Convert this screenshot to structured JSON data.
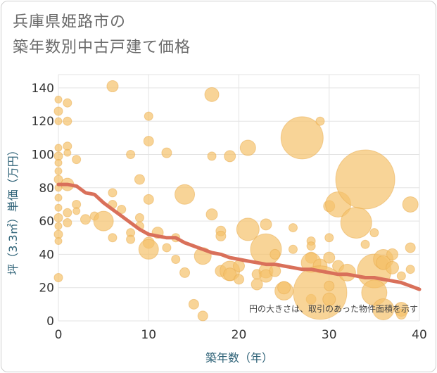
{
  "chart_data": {
    "type": "scatter",
    "title_lines": [
      "兵庫県姫路市の",
      "築年数別中古戸建て価格"
    ],
    "xlabel": "築年数（年）",
    "ylabel": "坪（3.3㎡）単価（万円）",
    "note": "円の大きさは、取引のあった物件面積を示す",
    "xlim": [
      0,
      40
    ],
    "ylim": [
      0,
      148
    ],
    "x_ticks": [
      0,
      10,
      20,
      30,
      40
    ],
    "y_ticks": [
      0,
      20,
      40,
      60,
      80,
      100,
      120,
      140
    ],
    "grid": true,
    "bubble_color": "#f5c26b",
    "bubble_edge_color": "#e8a94a",
    "trend_color": "#d9705a",
    "points": [
      {
        "x": 0,
        "y": 133,
        "size": 5
      },
      {
        "x": 0,
        "y": 126,
        "size": 6
      },
      {
        "x": 0,
        "y": 120,
        "size": 5
      },
      {
        "x": 0,
        "y": 104,
        "size": 5
      },
      {
        "x": 0,
        "y": 99,
        "size": 6
      },
      {
        "x": 0,
        "y": 95,
        "size": 5
      },
      {
        "x": 0,
        "y": 90,
        "size": 5
      },
      {
        "x": 0,
        "y": 85,
        "size": 6
      },
      {
        "x": 0,
        "y": 80,
        "size": 5
      },
      {
        "x": 0,
        "y": 74,
        "size": 5
      },
      {
        "x": 0,
        "y": 68,
        "size": 5
      },
      {
        "x": 0,
        "y": 62,
        "size": 6
      },
      {
        "x": 0,
        "y": 57,
        "size": 5
      },
      {
        "x": 0,
        "y": 52,
        "size": 6
      },
      {
        "x": 0,
        "y": 48,
        "size": 5
      },
      {
        "x": 0,
        "y": 26,
        "size": 6
      },
      {
        "x": 1,
        "y": 131,
        "size": 6
      },
      {
        "x": 1,
        "y": 120,
        "size": 6
      },
      {
        "x": 1,
        "y": 105,
        "size": 6
      },
      {
        "x": 1,
        "y": 101,
        "size": 5
      },
      {
        "x": 1,
        "y": 82,
        "size": 9
      },
      {
        "x": 1,
        "y": 65,
        "size": 6
      },
      {
        "x": 1,
        "y": 59,
        "size": 6
      },
      {
        "x": 2,
        "y": 97,
        "size": 6
      },
      {
        "x": 2,
        "y": 70,
        "size": 6
      },
      {
        "x": 2,
        "y": 66,
        "size": 5
      },
      {
        "x": 3,
        "y": 61,
        "size": 7
      },
      {
        "x": 4,
        "y": 63,
        "size": 6
      },
      {
        "x": 5,
        "y": 60,
        "size": 14
      },
      {
        "x": 6,
        "y": 141,
        "size": 8
      },
      {
        "x": 6,
        "y": 77,
        "size": 6
      },
      {
        "x": 6,
        "y": 70,
        "size": 6
      },
      {
        "x": 6,
        "y": 50,
        "size": 6
      },
      {
        "x": 7,
        "y": 67,
        "size": 6
      },
      {
        "x": 8,
        "y": 100,
        "size": 6
      },
      {
        "x": 8,
        "y": 53,
        "size": 6
      },
      {
        "x": 8,
        "y": 49,
        "size": 6
      },
      {
        "x": 9,
        "y": 85,
        "size": 7
      },
      {
        "x": 9,
        "y": 62,
        "size": 6
      },
      {
        "x": 9,
        "y": 57,
        "size": 6
      },
      {
        "x": 10,
        "y": 123,
        "size": 6
      },
      {
        "x": 10,
        "y": 108,
        "size": 7
      },
      {
        "x": 10,
        "y": 73,
        "size": 7
      },
      {
        "x": 10,
        "y": 47,
        "size": 8
      },
      {
        "x": 10,
        "y": 43,
        "size": 14
      },
      {
        "x": 11,
        "y": 53,
        "size": 8
      },
      {
        "x": 12,
        "y": 101,
        "size": 7
      },
      {
        "x": 12,
        "y": 44,
        "size": 6
      },
      {
        "x": 13,
        "y": 50,
        "size": 6
      },
      {
        "x": 13,
        "y": 37,
        "size": 6
      },
      {
        "x": 14,
        "y": 76,
        "size": 14
      },
      {
        "x": 14,
        "y": 29,
        "size": 7
      },
      {
        "x": 15,
        "y": 10,
        "size": 7
      },
      {
        "x": 16,
        "y": 39,
        "size": 12
      },
      {
        "x": 16,
        "y": 3,
        "size": 7
      },
      {
        "x": 17,
        "y": 136,
        "size": 10
      },
      {
        "x": 17,
        "y": 99,
        "size": 6
      },
      {
        "x": 17,
        "y": 64,
        "size": 8
      },
      {
        "x": 18,
        "y": 54,
        "size": 7
      },
      {
        "x": 18,
        "y": 51,
        "size": 7
      },
      {
        "x": 18,
        "y": 30,
        "size": 8
      },
      {
        "x": 19,
        "y": 99,
        "size": 8
      },
      {
        "x": 19,
        "y": 30,
        "size": 14
      },
      {
        "x": 19,
        "y": 28,
        "size": 9
      },
      {
        "x": 20,
        "y": 33,
        "size": 8
      },
      {
        "x": 20,
        "y": 25,
        "size": 7
      },
      {
        "x": 21,
        "y": 104,
        "size": 11
      },
      {
        "x": 21,
        "y": 55,
        "size": 16
      },
      {
        "x": 22,
        "y": 28,
        "size": 7
      },
      {
        "x": 22,
        "y": 22,
        "size": 8
      },
      {
        "x": 23,
        "y": 58,
        "size": 8
      },
      {
        "x": 23,
        "y": 43,
        "size": 22
      },
      {
        "x": 23,
        "y": 30,
        "size": 10
      },
      {
        "x": 23,
        "y": 27,
        "size": 9
      },
      {
        "x": 24,
        "y": 40,
        "size": 7
      },
      {
        "x": 24,
        "y": 30,
        "size": 8
      },
      {
        "x": 25,
        "y": 18,
        "size": 13
      },
      {
        "x": 25,
        "y": 20,
        "size": 9
      },
      {
        "x": 26,
        "y": 56,
        "size": 6
      },
      {
        "x": 26,
        "y": 43,
        "size": 6
      },
      {
        "x": 27,
        "y": 110,
        "size": 30
      },
      {
        "x": 28,
        "y": 48,
        "size": 6
      },
      {
        "x": 28,
        "y": 45,
        "size": 6
      },
      {
        "x": 28,
        "y": 38,
        "size": 8
      },
      {
        "x": 28,
        "y": 35,
        "size": 14
      },
      {
        "x": 28,
        "y": 13,
        "size": 7
      },
      {
        "x": 29,
        "y": 120,
        "size": 6
      },
      {
        "x": 29,
        "y": 33,
        "size": 10
      },
      {
        "x": 29,
        "y": 17,
        "size": 38
      },
      {
        "x": 30,
        "y": 69,
        "size": 8
      },
      {
        "x": 30,
        "y": 50,
        "size": 6
      },
      {
        "x": 30,
        "y": 38,
        "size": 8
      },
      {
        "x": 30,
        "y": 21,
        "size": 7
      },
      {
        "x": 30,
        "y": 13,
        "size": 9
      },
      {
        "x": 31,
        "y": 70,
        "size": 18
      },
      {
        "x": 31,
        "y": 33,
        "size": 8
      },
      {
        "x": 32,
        "y": 29,
        "size": 12
      },
      {
        "x": 33,
        "y": 59,
        "size": 22
      },
      {
        "x": 34,
        "y": 85,
        "size": 42
      },
      {
        "x": 34,
        "y": 46,
        "size": 6
      },
      {
        "x": 35,
        "y": 53,
        "size": 6
      },
      {
        "x": 35,
        "y": 30,
        "size": 24
      },
      {
        "x": 35,
        "y": 17,
        "size": 18
      },
      {
        "x": 36,
        "y": 37,
        "size": 14
      },
      {
        "x": 36,
        "y": 35,
        "size": 10
      },
      {
        "x": 36,
        "y": 7,
        "size": 15
      },
      {
        "x": 37,
        "y": 40,
        "size": 8
      },
      {
        "x": 37,
        "y": 32,
        "size": 9
      },
      {
        "x": 38,
        "y": 27,
        "size": 6
      },
      {
        "x": 38,
        "y": 7,
        "size": 10
      },
      {
        "x": 38,
        "y": 4,
        "size": 7
      },
      {
        "x": 39,
        "y": 70,
        "size": 11
      },
      {
        "x": 39,
        "y": 44,
        "size": 7
      },
      {
        "x": 39,
        "y": 31,
        "size": 6
      }
    ],
    "trend": [
      {
        "x": 0,
        "y": 82
      },
      {
        "x": 1,
        "y": 82
      },
      {
        "x": 2,
        "y": 81
      },
      {
        "x": 3,
        "y": 77
      },
      {
        "x": 4,
        "y": 76
      },
      {
        "x": 5,
        "y": 71
      },
      {
        "x": 6,
        "y": 67
      },
      {
        "x": 7,
        "y": 63
      },
      {
        "x": 8,
        "y": 59
      },
      {
        "x": 9,
        "y": 55
      },
      {
        "x": 10,
        "y": 52
      },
      {
        "x": 11,
        "y": 51
      },
      {
        "x": 12,
        "y": 50
      },
      {
        "x": 13,
        "y": 50
      },
      {
        "x": 14,
        "y": 47
      },
      {
        "x": 15,
        "y": 45
      },
      {
        "x": 16,
        "y": 43
      },
      {
        "x": 17,
        "y": 41
      },
      {
        "x": 18,
        "y": 40
      },
      {
        "x": 19,
        "y": 38
      },
      {
        "x": 20,
        "y": 37
      },
      {
        "x": 21,
        "y": 36
      },
      {
        "x": 22,
        "y": 35
      },
      {
        "x": 23,
        "y": 34
      },
      {
        "x": 24,
        "y": 34
      },
      {
        "x": 25,
        "y": 33
      },
      {
        "x": 26,
        "y": 32
      },
      {
        "x": 27,
        "y": 31
      },
      {
        "x": 28,
        "y": 31
      },
      {
        "x": 29,
        "y": 30
      },
      {
        "x": 30,
        "y": 29
      },
      {
        "x": 31,
        "y": 28
      },
      {
        "x": 32,
        "y": 28
      },
      {
        "x": 33,
        "y": 27
      },
      {
        "x": 34,
        "y": 26
      },
      {
        "x": 35,
        "y": 26
      },
      {
        "x": 36,
        "y": 25
      },
      {
        "x": 37,
        "y": 24
      },
      {
        "x": 38,
        "y": 23
      },
      {
        "x": 39,
        "y": 21
      },
      {
        "x": 40,
        "y": 19
      }
    ]
  }
}
